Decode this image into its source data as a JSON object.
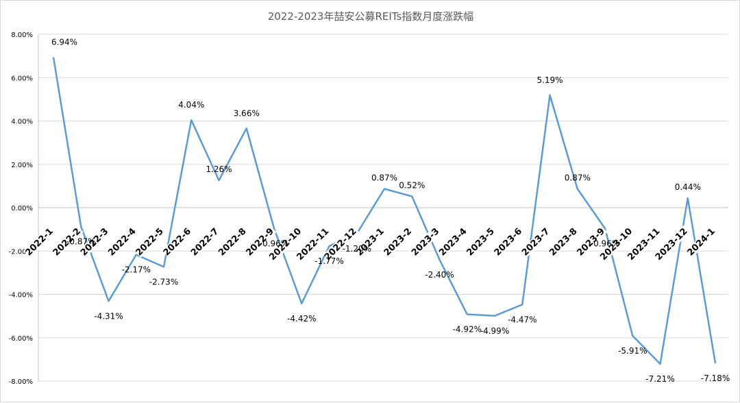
{
  "chart_data": {
    "type": "line",
    "title": "2022-2023年喆安公募REITs指数月度涨跌幅",
    "xlabel": "",
    "ylabel": "",
    "ylim": [
      -0.08,
      0.08
    ],
    "yticks": [
      0.08,
      0.06,
      0.04,
      0.02,
      0.0,
      -0.02,
      -0.04,
      -0.06,
      -0.08
    ],
    "ytick_labels": [
      "8.00%",
      "6.00%",
      "4.00%",
      "2.00%",
      "0.00%",
      "-2.00%",
      "-4.00%",
      "-6.00%",
      "-8.00%"
    ],
    "grid": true,
    "legend": "none",
    "categories": [
      "2022-1",
      "2022-2",
      "2022-3",
      "2022-4",
      "2022-5",
      "2022-6",
      "2022-7",
      "2022-8",
      "2022-9",
      "2022-10",
      "2022-11",
      "2022-12",
      "2023-1",
      "2023-2",
      "2023-3",
      "2023-4",
      "2023-5",
      "2023-6",
      "2023-7",
      "2023-8",
      "2023-9",
      "2023-10",
      "2023-11",
      "2023-12",
      "2024-1"
    ],
    "series": [
      {
        "values": [
          0.0694,
          -0.0087,
          -0.0431,
          -0.0217,
          -0.0273,
          0.0404,
          0.0126,
          0.0366,
          -0.0096,
          -0.0442,
          -0.0177,
          -0.012,
          0.0087,
          0.0052,
          -0.024,
          -0.0492,
          -0.0499,
          -0.0447,
          0.0519,
          0.0087,
          -0.0096,
          -0.0591,
          -0.0721,
          0.0044,
          -0.0718
        ],
        "labels": [
          "6.94%",
          "-0.87%",
          "-4.31%",
          "-2.17%",
          "-2.73%",
          "4.04%",
          "1.26%",
          "3.66%",
          "-0.96%",
          "-4.42%",
          "-1.77%",
          "-1.20%",
          "0.87%",
          "0.52%",
          "-2.40%",
          "-4.92%",
          "-4.99%",
          "-4.47%",
          "5.19%",
          "0.87%",
          "-0.96%",
          "-5.91%",
          "-7.21%",
          "0.44%",
          "-7.18%"
        ]
      }
    ],
    "colors": {
      "line": "#5b9bd5",
      "grid": "#d9d9d9",
      "axis": "#bfbfbf",
      "title": "#595959"
    }
  }
}
